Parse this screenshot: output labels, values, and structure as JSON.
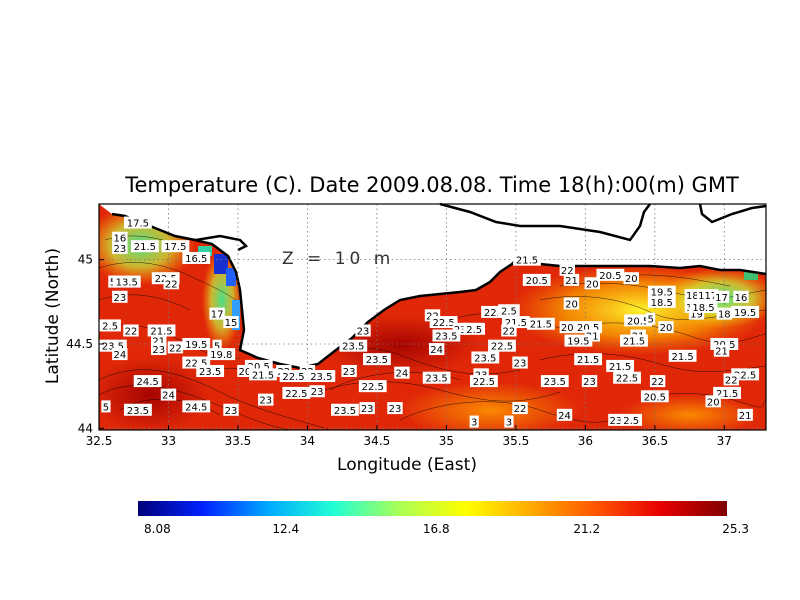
{
  "chart_data": {
    "type": "heatmap",
    "title": "Temperature (C). Date 2009.08.08. Time 18(h):00(m) GMT",
    "xlabel": "Longitude (East)",
    "ylabel": "Latitude (North)",
    "annotation": "Z = 10 m",
    "xlim": [
      32.5,
      37.3
    ],
    "ylim": [
      43.99,
      45.33
    ],
    "x_ticks": [
      32.5,
      33,
      33.5,
      34,
      34.5,
      35,
      35.5,
      36,
      36.5,
      37
    ],
    "x_tick_labels": [
      "32.5",
      "33",
      "33.5",
      "34",
      "34.5",
      "35",
      "35.5",
      "36",
      "36.5",
      "37"
    ],
    "y_ticks": [
      44,
      44.5,
      45
    ],
    "y_tick_labels": [
      "44",
      "44.5",
      "45"
    ],
    "grid": true,
    "colorbar": {
      "min": 8.08,
      "max": 25.3,
      "tick_values": [
        8.08,
        12.4,
        16.8,
        21.2,
        25.3
      ],
      "tick_labels": [
        "8.08",
        "12.4",
        "16.8",
        "21.2",
        "25.3"
      ],
      "colors": [
        "#00007a",
        "#0022ff",
        "#00aaff",
        "#22ffd4",
        "#aaff55",
        "#ffff00",
        "#ffaa00",
        "#ff5500",
        "#e60000",
        "#800000"
      ]
    },
    "contour_labels": [
      {
        "x": 32.78,
        "y": 45.22,
        "text": "17.5"
      },
      {
        "x": 32.65,
        "y": 45.13,
        "text": "16"
      },
      {
        "x": 32.65,
        "y": 45.07,
        "text": "23"
      },
      {
        "x": 32.83,
        "y": 45.08,
        "text": "21.5"
      },
      {
        "x": 33.05,
        "y": 45.08,
        "text": "17.5"
      },
      {
        "x": 33.2,
        "y": 45.01,
        "text": "16.5"
      },
      {
        "x": 32.6,
        "y": 44.87,
        "text": "5"
      },
      {
        "x": 32.7,
        "y": 44.87,
        "text": "13.5"
      },
      {
        "x": 32.98,
        "y": 44.89,
        "text": "22.5"
      },
      {
        "x": 33.02,
        "y": 44.86,
        "text": "22"
      },
      {
        "x": 32.65,
        "y": 44.78,
        "text": "23"
      },
      {
        "x": 33.35,
        "y": 44.68,
        "text": "17"
      },
      {
        "x": 33.45,
        "y": 44.63,
        "text": "15"
      },
      {
        "x": 32.58,
        "y": 44.61,
        "text": "2.5"
      },
      {
        "x": 32.73,
        "y": 44.58,
        "text": "22"
      },
      {
        "x": 32.95,
        "y": 44.58,
        "text": "21.5"
      },
      {
        "x": 32.93,
        "y": 44.52,
        "text": "21"
      },
      {
        "x": 32.6,
        "y": 44.49,
        "text": "23.5"
      },
      {
        "x": 32.65,
        "y": 44.44,
        "text": "24"
      },
      {
        "x": 32.93,
        "y": 44.47,
        "text": "23"
      },
      {
        "x": 33.05,
        "y": 44.48,
        "text": "22"
      },
      {
        "x": 33.2,
        "y": 44.5,
        "text": "19.5"
      },
      {
        "x": 33.35,
        "y": 44.49,
        "text": "5"
      },
      {
        "x": 33.38,
        "y": 44.44,
        "text": "19.8"
      },
      {
        "x": 33.2,
        "y": 44.39,
        "text": "22.5"
      },
      {
        "x": 33.3,
        "y": 44.34,
        "text": "23.5"
      },
      {
        "x": 33.65,
        "y": 44.37,
        "text": "20.5"
      },
      {
        "x": 33.55,
        "y": 44.34,
        "text": "20"
      },
      {
        "x": 33.68,
        "y": 44.32,
        "text": "21.5"
      },
      {
        "x": 33.83,
        "y": 44.34,
        "text": "22"
      },
      {
        "x": 34.0,
        "y": 44.34,
        "text": "22"
      },
      {
        "x": 32.85,
        "y": 44.28,
        "text": "24.5"
      },
      {
        "x": 34.1,
        "y": 44.31,
        "text": "23.5"
      },
      {
        "x": 33.9,
        "y": 44.31,
        "text": "22.5"
      },
      {
        "x": 33.0,
        "y": 44.2,
        "text": "24"
      },
      {
        "x": 33.92,
        "y": 44.21,
        "text": "22.5"
      },
      {
        "x": 34.07,
        "y": 44.22,
        "text": "23"
      },
      {
        "x": 33.7,
        "y": 44.17,
        "text": "23"
      },
      {
        "x": 33.2,
        "y": 44.13,
        "text": "24.5"
      },
      {
        "x": 32.55,
        "y": 44.13,
        "text": "5"
      },
      {
        "x": 32.78,
        "y": 44.11,
        "text": "23.5"
      },
      {
        "x": 33.45,
        "y": 44.11,
        "text": "23"
      },
      {
        "x": 34.27,
        "y": 44.11,
        "text": "23.5"
      },
      {
        "x": 34.43,
        "y": 44.12,
        "text": "23"
      },
      {
        "x": 34.63,
        "y": 44.12,
        "text": "23"
      },
      {
        "x": 34.4,
        "y": 44.58,
        "text": "23"
      },
      {
        "x": 34.33,
        "y": 44.49,
        "text": "23.5"
      },
      {
        "x": 34.5,
        "y": 44.41,
        "text": "23.5"
      },
      {
        "x": 34.3,
        "y": 44.34,
        "text": "23"
      },
      {
        "x": 34.68,
        "y": 44.33,
        "text": "24"
      },
      {
        "x": 34.93,
        "y": 44.3,
        "text": "23.5"
      },
      {
        "x": 34.47,
        "y": 44.25,
        "text": "22.5"
      },
      {
        "x": 34.9,
        "y": 44.67,
        "text": "22"
      },
      {
        "x": 34.98,
        "y": 44.63,
        "text": "22.5"
      },
      {
        "x": 35.1,
        "y": 44.59,
        "text": "23"
      },
      {
        "x": 35.2,
        "y": 44.59,
        "text": "2.5"
      },
      {
        "x": 35.0,
        "y": 44.55,
        "text": "23.5"
      },
      {
        "x": 34.93,
        "y": 44.47,
        "text": "24"
      },
      {
        "x": 35.28,
        "y": 44.42,
        "text": "23.5"
      },
      {
        "x": 35.4,
        "y": 44.49,
        "text": "22.5"
      },
      {
        "x": 35.25,
        "y": 44.32,
        "text": "23"
      },
      {
        "x": 35.27,
        "y": 44.28,
        "text": "22.5"
      },
      {
        "x": 35.53,
        "y": 44.39,
        "text": "23"
      },
      {
        "x": 35.35,
        "y": 44.69,
        "text": "22.5"
      },
      {
        "x": 35.45,
        "y": 44.7,
        "text": "2.5"
      },
      {
        "x": 35.5,
        "y": 44.63,
        "text": "21.5"
      },
      {
        "x": 35.45,
        "y": 44.58,
        "text": "22"
      },
      {
        "x": 35.68,
        "y": 44.62,
        "text": "21.5"
      },
      {
        "x": 35.53,
        "y": 44.12,
        "text": "22"
      },
      {
        "x": 35.58,
        "y": 45.0,
        "text": "21.5"
      },
      {
        "x": 35.65,
        "y": 44.88,
        "text": "20.5"
      },
      {
        "x": 35.87,
        "y": 44.94,
        "text": "22"
      },
      {
        "x": 35.9,
        "y": 44.88,
        "text": "21"
      },
      {
        "x": 35.9,
        "y": 44.74,
        "text": "20"
      },
      {
        "x": 36.05,
        "y": 44.86,
        "text": "20"
      },
      {
        "x": 35.87,
        "y": 44.6,
        "text": "20"
      },
      {
        "x": 36.02,
        "y": 44.6,
        "text": "20.5"
      },
      {
        "x": 36.05,
        "y": 44.55,
        "text": "21"
      },
      {
        "x": 35.95,
        "y": 44.52,
        "text": "19.5"
      },
      {
        "x": 36.18,
        "y": 44.91,
        "text": "20.5"
      },
      {
        "x": 36.33,
        "y": 44.89,
        "text": "20"
      },
      {
        "x": 36.02,
        "y": 44.41,
        "text": "21.5"
      },
      {
        "x": 36.25,
        "y": 44.37,
        "text": "21.5"
      },
      {
        "x": 36.3,
        "y": 44.3,
        "text": "22.5"
      },
      {
        "x": 36.38,
        "y": 44.64,
        "text": "20.5"
      },
      {
        "x": 36.38,
        "y": 44.55,
        "text": "21"
      },
      {
        "x": 36.35,
        "y": 44.52,
        "text": "21.5"
      },
      {
        "x": 36.47,
        "y": 44.65,
        "text": "5"
      },
      {
        "x": 36.55,
        "y": 44.81,
        "text": "19.5"
      },
      {
        "x": 36.55,
        "y": 44.75,
        "text": "18.5"
      },
      {
        "x": 36.58,
        "y": 44.6,
        "text": "20"
      },
      {
        "x": 36.77,
        "y": 44.79,
        "text": "18"
      },
      {
        "x": 36.77,
        "y": 44.72,
        "text": "17"
      },
      {
        "x": 36.8,
        "y": 44.68,
        "text": "19"
      },
      {
        "x": 36.85,
        "y": 44.72,
        "text": "18.5"
      },
      {
        "x": 36.88,
        "y": 44.79,
        "text": "117"
      },
      {
        "x": 36.98,
        "y": 44.78,
        "text": "17"
      },
      {
        "x": 37.12,
        "y": 44.78,
        "text": "16"
      },
      {
        "x": 37.15,
        "y": 44.69,
        "text": "19.5"
      },
      {
        "x": 37.0,
        "y": 44.68,
        "text": "18"
      },
      {
        "x": 36.7,
        "y": 44.43,
        "text": "21.5"
      },
      {
        "x": 37.0,
        "y": 44.5,
        "text": "20.5"
      },
      {
        "x": 36.98,
        "y": 44.46,
        "text": "21"
      },
      {
        "x": 37.15,
        "y": 44.32,
        "text": "22.5"
      },
      {
        "x": 37.05,
        "y": 44.29,
        "text": "22"
      },
      {
        "x": 36.52,
        "y": 44.28,
        "text": "22"
      },
      {
        "x": 37.02,
        "y": 44.21,
        "text": "21.5"
      },
      {
        "x": 36.5,
        "y": 44.19,
        "text": "20.5"
      },
      {
        "x": 36.92,
        "y": 44.16,
        "text": "20"
      },
      {
        "x": 35.78,
        "y": 44.28,
        "text": "23.5"
      },
      {
        "x": 36.03,
        "y": 44.28,
        "text": "23"
      },
      {
        "x": 35.85,
        "y": 44.08,
        "text": "24"
      },
      {
        "x": 36.22,
        "y": 44.05,
        "text": "23"
      },
      {
        "x": 36.33,
        "y": 44.05,
        "text": "2.5"
      },
      {
        "x": 37.15,
        "y": 44.08,
        "text": "21"
      },
      {
        "x": 35.2,
        "y": 44.04,
        "text": "3"
      },
      {
        "x": 35.45,
        "y": 44.04,
        "text": "3"
      }
    ]
  }
}
